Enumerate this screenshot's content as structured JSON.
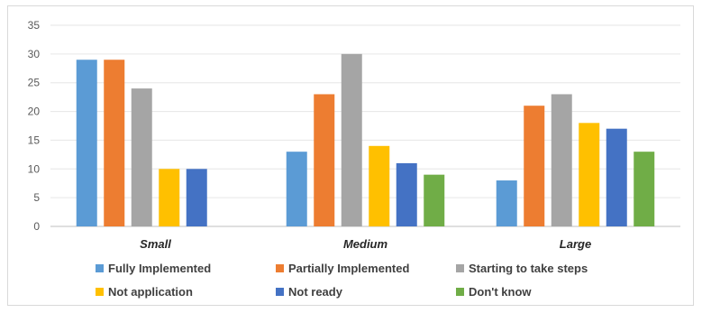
{
  "chart_data": {
    "type": "bar",
    "title": "",
    "xlabel": "",
    "ylabel": "",
    "categories": [
      "Small",
      "Medium",
      "Large"
    ],
    "ylim": [
      0,
      35
    ],
    "yticks": [
      0,
      5,
      10,
      15,
      20,
      25,
      30,
      35
    ],
    "grid": true,
    "legend_position": "bottom",
    "series": [
      {
        "name": "Fully Implemented",
        "color": "#5b9bd5",
        "values": [
          29,
          13,
          8
        ]
      },
      {
        "name": "Partially Implemented",
        "color": "#ed7d31",
        "values": [
          29,
          23,
          21
        ]
      },
      {
        "name": "Starting to take steps",
        "color": "#a5a5a5",
        "values": [
          24,
          30,
          23
        ]
      },
      {
        "name": "Not application",
        "color": "#ffc000",
        "values": [
          10,
          14,
          18
        ]
      },
      {
        "name": "Not ready",
        "color": "#4472c4",
        "values": [
          10,
          11,
          17
        ]
      },
      {
        "name": "Don't know",
        "color": "#70ad47",
        "values": [
          null,
          9,
          13
        ]
      }
    ]
  }
}
